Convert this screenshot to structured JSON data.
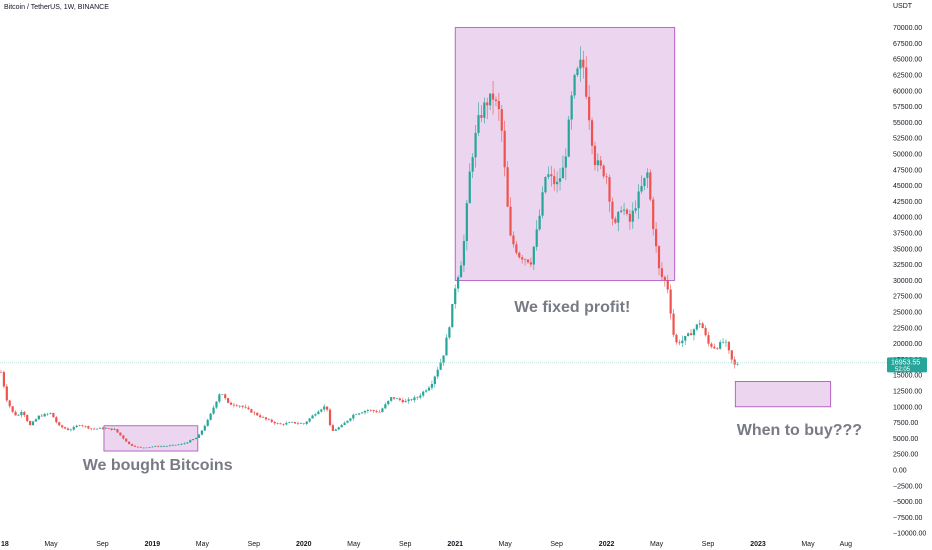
{
  "header": {
    "symbol": "Bitcoin / TetherUS, 1W, BINANCE",
    "currency": "USDT"
  },
  "colors": {
    "up": "#26a69a",
    "down": "#ef5350",
    "box_fill": "#e1bee7",
    "box_stroke": "#ab47bc",
    "price_tag": "#26a69a",
    "annotation_text": "#787b86"
  },
  "chart_data": {
    "type": "candlestick",
    "ylim": [
      -10000,
      72000
    ],
    "y_ticks": [
      "70000.00",
      "67500.00",
      "65000.00",
      "62500.00",
      "60000.00",
      "57500.00",
      "55000.00",
      "52500.00",
      "50000.00",
      "47500.00",
      "45000.00",
      "42500.00",
      "40000.00",
      "37500.00",
      "35000.00",
      "32500.00",
      "30000.00",
      "27500.00",
      "25000.00",
      "22500.00",
      "20000.00",
      "17500.00",
      "15000.00",
      "12500.00",
      "10000.00",
      "7500.00",
      "5000.00",
      "2500.00",
      "0.00",
      "−2500.00",
      "−5000.00",
      "−7500.00",
      "−10000.00"
    ],
    "x_ticks": [
      {
        "label": "18",
        "t": 0.0,
        "bold": true
      },
      {
        "label": "May",
        "t": 0.33,
        "bold": false
      },
      {
        "label": "Sep",
        "t": 0.67,
        "bold": false
      },
      {
        "label": "2019",
        "t": 1.0,
        "bold": true
      },
      {
        "label": "May",
        "t": 1.33,
        "bold": false
      },
      {
        "label": "Sep",
        "t": 1.67,
        "bold": false
      },
      {
        "label": "2020",
        "t": 2.0,
        "bold": true
      },
      {
        "label": "May",
        "t": 2.33,
        "bold": false
      },
      {
        "label": "Sep",
        "t": 2.67,
        "bold": false
      },
      {
        "label": "2021",
        "t": 3.0,
        "bold": true
      },
      {
        "label": "May",
        "t": 3.33,
        "bold": false
      },
      {
        "label": "Sep",
        "t": 3.67,
        "bold": false
      },
      {
        "label": "2022",
        "t": 4.0,
        "bold": true
      },
      {
        "label": "May",
        "t": 4.33,
        "bold": false
      },
      {
        "label": "Sep",
        "t": 4.67,
        "bold": false
      },
      {
        "label": "2023",
        "t": 5.0,
        "bold": true
      },
      {
        "label": "May",
        "t": 5.33,
        "bold": false
      },
      {
        "label": "Aug",
        "t": 5.58,
        "bold": false
      }
    ],
    "price_path": [
      [
        0.0,
        15500
      ],
      [
        0.04,
        11000
      ],
      [
        0.08,
        9000
      ],
      [
        0.11,
        8500
      ],
      [
        0.14,
        9500
      ],
      [
        0.19,
        7000
      ],
      [
        0.25,
        8500
      ],
      [
        0.33,
        9000
      ],
      [
        0.38,
        7000
      ],
      [
        0.45,
        6300
      ],
      [
        0.52,
        7200
      ],
      [
        0.6,
        6500
      ],
      [
        0.67,
        6600
      ],
      [
        0.75,
        6400
      ],
      [
        0.85,
        4000
      ],
      [
        0.92,
        3500
      ],
      [
        1.0,
        3700
      ],
      [
        1.1,
        3800
      ],
      [
        1.2,
        4100
      ],
      [
        1.3,
        5200
      ],
      [
        1.37,
        8000
      ],
      [
        1.45,
        12500
      ],
      [
        1.5,
        10500
      ],
      [
        1.58,
        10200
      ],
      [
        1.67,
        9000
      ],
      [
        1.75,
        8000
      ],
      [
        1.84,
        7200
      ],
      [
        1.92,
        7500
      ],
      [
        2.0,
        7300
      ],
      [
        2.1,
        9500
      ],
      [
        2.15,
        10200
      ],
      [
        2.18,
        6000
      ],
      [
        2.25,
        7000
      ],
      [
        2.33,
        8800
      ],
      [
        2.42,
        9500
      ],
      [
        2.5,
        9200
      ],
      [
        2.58,
        11500
      ],
      [
        2.67,
        10800
      ],
      [
        2.75,
        11500
      ],
      [
        2.84,
        13500
      ],
      [
        2.92,
        18000
      ],
      [
        2.97,
        24000
      ],
      [
        3.0,
        29000
      ],
      [
        3.05,
        34000
      ],
      [
        3.1,
        48000
      ],
      [
        3.15,
        55000
      ],
      [
        3.2,
        58000
      ],
      [
        3.25,
        59000
      ],
      [
        3.3,
        56000
      ],
      [
        3.36,
        37000
      ],
      [
        3.42,
        34000
      ],
      [
        3.5,
        33000
      ],
      [
        3.55,
        39000
      ],
      [
        3.6,
        47000
      ],
      [
        3.67,
        45000
      ],
      [
        3.72,
        48000
      ],
      [
        3.78,
        61000
      ],
      [
        3.84,
        65000
      ],
      [
        3.88,
        57000
      ],
      [
        3.92,
        49000
      ],
      [
        4.0,
        46500
      ],
      [
        4.05,
        38000
      ],
      [
        4.1,
        42000
      ],
      [
        4.15,
        39000
      ],
      [
        4.22,
        44000
      ],
      [
        4.27,
        47000
      ],
      [
        4.3,
        40000
      ],
      [
        4.35,
        31000
      ],
      [
        4.4,
        29500
      ],
      [
        4.45,
        20000
      ],
      [
        4.5,
        20500
      ],
      [
        4.55,
        21500
      ],
      [
        4.62,
        23500
      ],
      [
        4.67,
        20000
      ],
      [
        4.72,
        19300
      ],
      [
        4.78,
        20500
      ],
      [
        4.84,
        16500
      ],
      [
        4.88,
        16950
      ]
    ],
    "current_price": 16953.55,
    "current_price_label": "16953.55",
    "countdown": "52:05",
    "boxes": [
      {
        "name": "buy-box",
        "t0": 0.68,
        "t1": 1.3,
        "y0": 3000,
        "y1": 7000
      },
      {
        "name": "profit-box",
        "t0": 3.0,
        "t1": 4.45,
        "y0": 30000,
        "y1": 70000
      },
      {
        "name": "future-buy-box",
        "t0": 4.85,
        "t1": 5.48,
        "y0": 10000,
        "y1": 14000
      }
    ],
    "annotations": [
      {
        "name": "annotation-bought",
        "text": "We bought Bitcoins",
        "t": 0.5,
        "y": 0
      },
      {
        "name": "annotation-fixed-profit",
        "text": "We fixed profit!",
        "t": 3.35,
        "y": 25000
      },
      {
        "name": "annotation-when-to-buy",
        "text": "When to buy???",
        "t": 4.82,
        "y": 5500
      }
    ]
  }
}
